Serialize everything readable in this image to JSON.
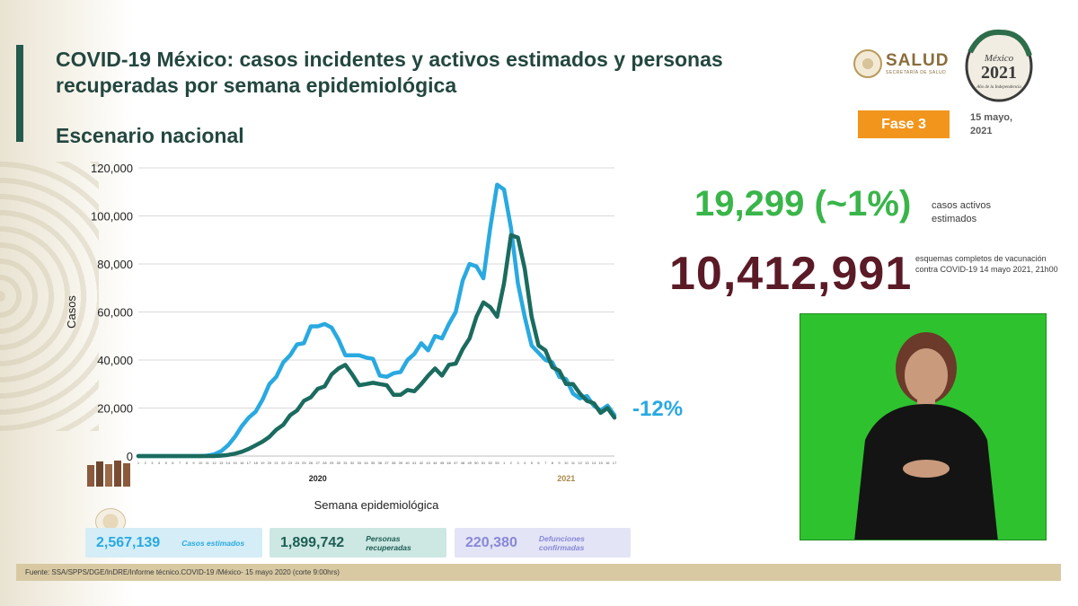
{
  "header": {
    "title": "COVID-19 México: casos incidentes y activos estimados y personas recuperadas por semana epidemiológica",
    "subtitle": "Escenario nacional",
    "logo_salud": "SALUD",
    "logo_salud_sub": "SECRETARÍA DE SALUD",
    "logo_2021_line1": "México",
    "logo_2021_line2": "2021",
    "logo_2021_line3": "Año de la Independencia",
    "phase_badge": "Fase 3",
    "date": "15 mayo, 2021"
  },
  "kpis": {
    "active_value": "19,299 (~1%)",
    "active_label": "casos activos estimados",
    "vaccination_value": "10,412,991",
    "vaccination_label": "esquemas completos de vacunación contra COVID-19 14 mayo 2021, 21h00"
  },
  "annotation": "-12%",
  "summary": [
    {
      "value": "2,567,139",
      "label": "Casos estimados"
    },
    {
      "value": "1,899,742",
      "label": "Personas recuperadas"
    },
    {
      "value": "220,380",
      "label": "Defunciones confirmadas"
    }
  ],
  "footer": "Fuente: SSA/SPPS/DGE/InDRE/Informe técnico.COVID-19 /México- 15 mayo 2020 (corte 9:00hrs)",
  "colors": {
    "light_series": "#29a9e0",
    "dark_series": "#1b6b5f",
    "active_kpi": "#39b54a",
    "vaccination_kpi": "#5a1a26",
    "badge": "#f2951c"
  },
  "chart_data": {
    "type": "line",
    "xlabel": "Semana epidemiológica",
    "ylabel": "Casos",
    "ylim": [
      0,
      120000
    ],
    "yticks": [
      0,
      20000,
      40000,
      60000,
      80000,
      100000,
      120000
    ],
    "ytick_labels": [
      "0",
      "20,000",
      "40,000",
      "60,000",
      "80,000",
      "100,000",
      "120,000"
    ],
    "grid": true,
    "year_labels": [
      {
        "label": "2020",
        "index": 26
      },
      {
        "label": "2021",
        "index": 62
      }
    ],
    "weeks": [
      "1",
      "2",
      "3",
      "4",
      "5",
      "6",
      "7",
      "8",
      "9",
      "10",
      "11",
      "12",
      "13",
      "14",
      "15",
      "16",
      "17",
      "18",
      "19",
      "20",
      "21",
      "22",
      "23",
      "24",
      "25",
      "26",
      "27",
      "28",
      "29",
      "30",
      "31",
      "32",
      "33",
      "34",
      "35",
      "36",
      "37",
      "38",
      "39",
      "40",
      "41",
      "42",
      "43",
      "44",
      "45",
      "46",
      "47",
      "48",
      "49",
      "50",
      "51",
      "52",
      "53",
      "1",
      "2",
      "3",
      "4",
      "5",
      "6",
      "7",
      "8",
      "9",
      "10",
      "11",
      "12",
      "13",
      "14",
      "15",
      "16",
      "17"
    ],
    "series": [
      {
        "values": [
          0,
          0,
          0,
          0,
          0,
          0,
          0,
          0,
          0,
          0,
          200,
          700,
          2000,
          4500,
          8000,
          12500,
          16000,
          18500,
          23500,
          30000,
          33000,
          39000,
          42000,
          46500,
          47000,
          54000,
          54000,
          55000,
          53500,
          48500,
          42000,
          42000,
          42000,
          41000,
          40500,
          33500,
          33000,
          34500,
          35000,
          40000,
          42500,
          47000,
          44000,
          50000,
          49000,
          55000,
          60000,
          73000,
          80000,
          79000,
          74000,
          95000,
          113000,
          111000,
          95000,
          72000,
          58000,
          46000,
          43000,
          40000,
          39000,
          33000,
          32000,
          26000,
          24000,
          25000,
          21000,
          19000,
          21000,
          17000
        ]
      },
      {
        "values": [
          0,
          0,
          0,
          0,
          0,
          0,
          0,
          0,
          0,
          0,
          0,
          0,
          200,
          500,
          1000,
          1800,
          3000,
          4500,
          6000,
          8000,
          11000,
          13000,
          17000,
          19000,
          23000,
          24500,
          28000,
          29000,
          34000,
          36500,
          38000,
          34000,
          29500,
          30000,
          30500,
          30000,
          29500,
          25500,
          25500,
          27500,
          27000,
          30000,
          33500,
          36500,
          33500,
          38000,
          38500,
          44500,
          49000,
          58000,
          64000,
          62000,
          58000,
          72000,
          92000,
          91000,
          78000,
          58000,
          46000,
          44000,
          37000,
          35500,
          30000,
          30000,
          26000,
          23000,
          22000,
          18000,
          20000,
          16000
        ]
      }
    ]
  }
}
